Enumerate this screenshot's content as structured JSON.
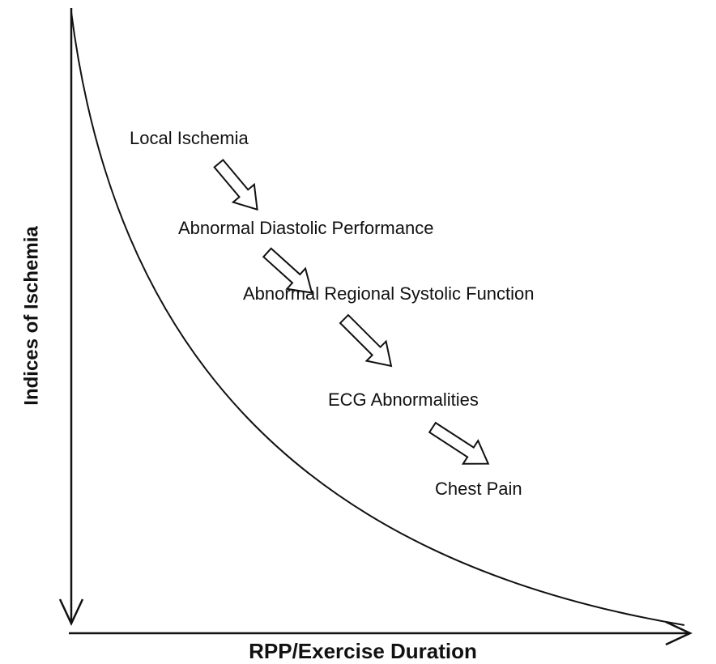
{
  "y_axis_label": "Indices of Ischemia",
  "x_axis_label": "RPP/Exercise Duration",
  "steps": [
    "Local Ischemia",
    "Abnormal Diastolic Performance",
    "Abnormal Regional Systolic Function",
    "ECG Abnormalities",
    "Chest Pain"
  ]
}
